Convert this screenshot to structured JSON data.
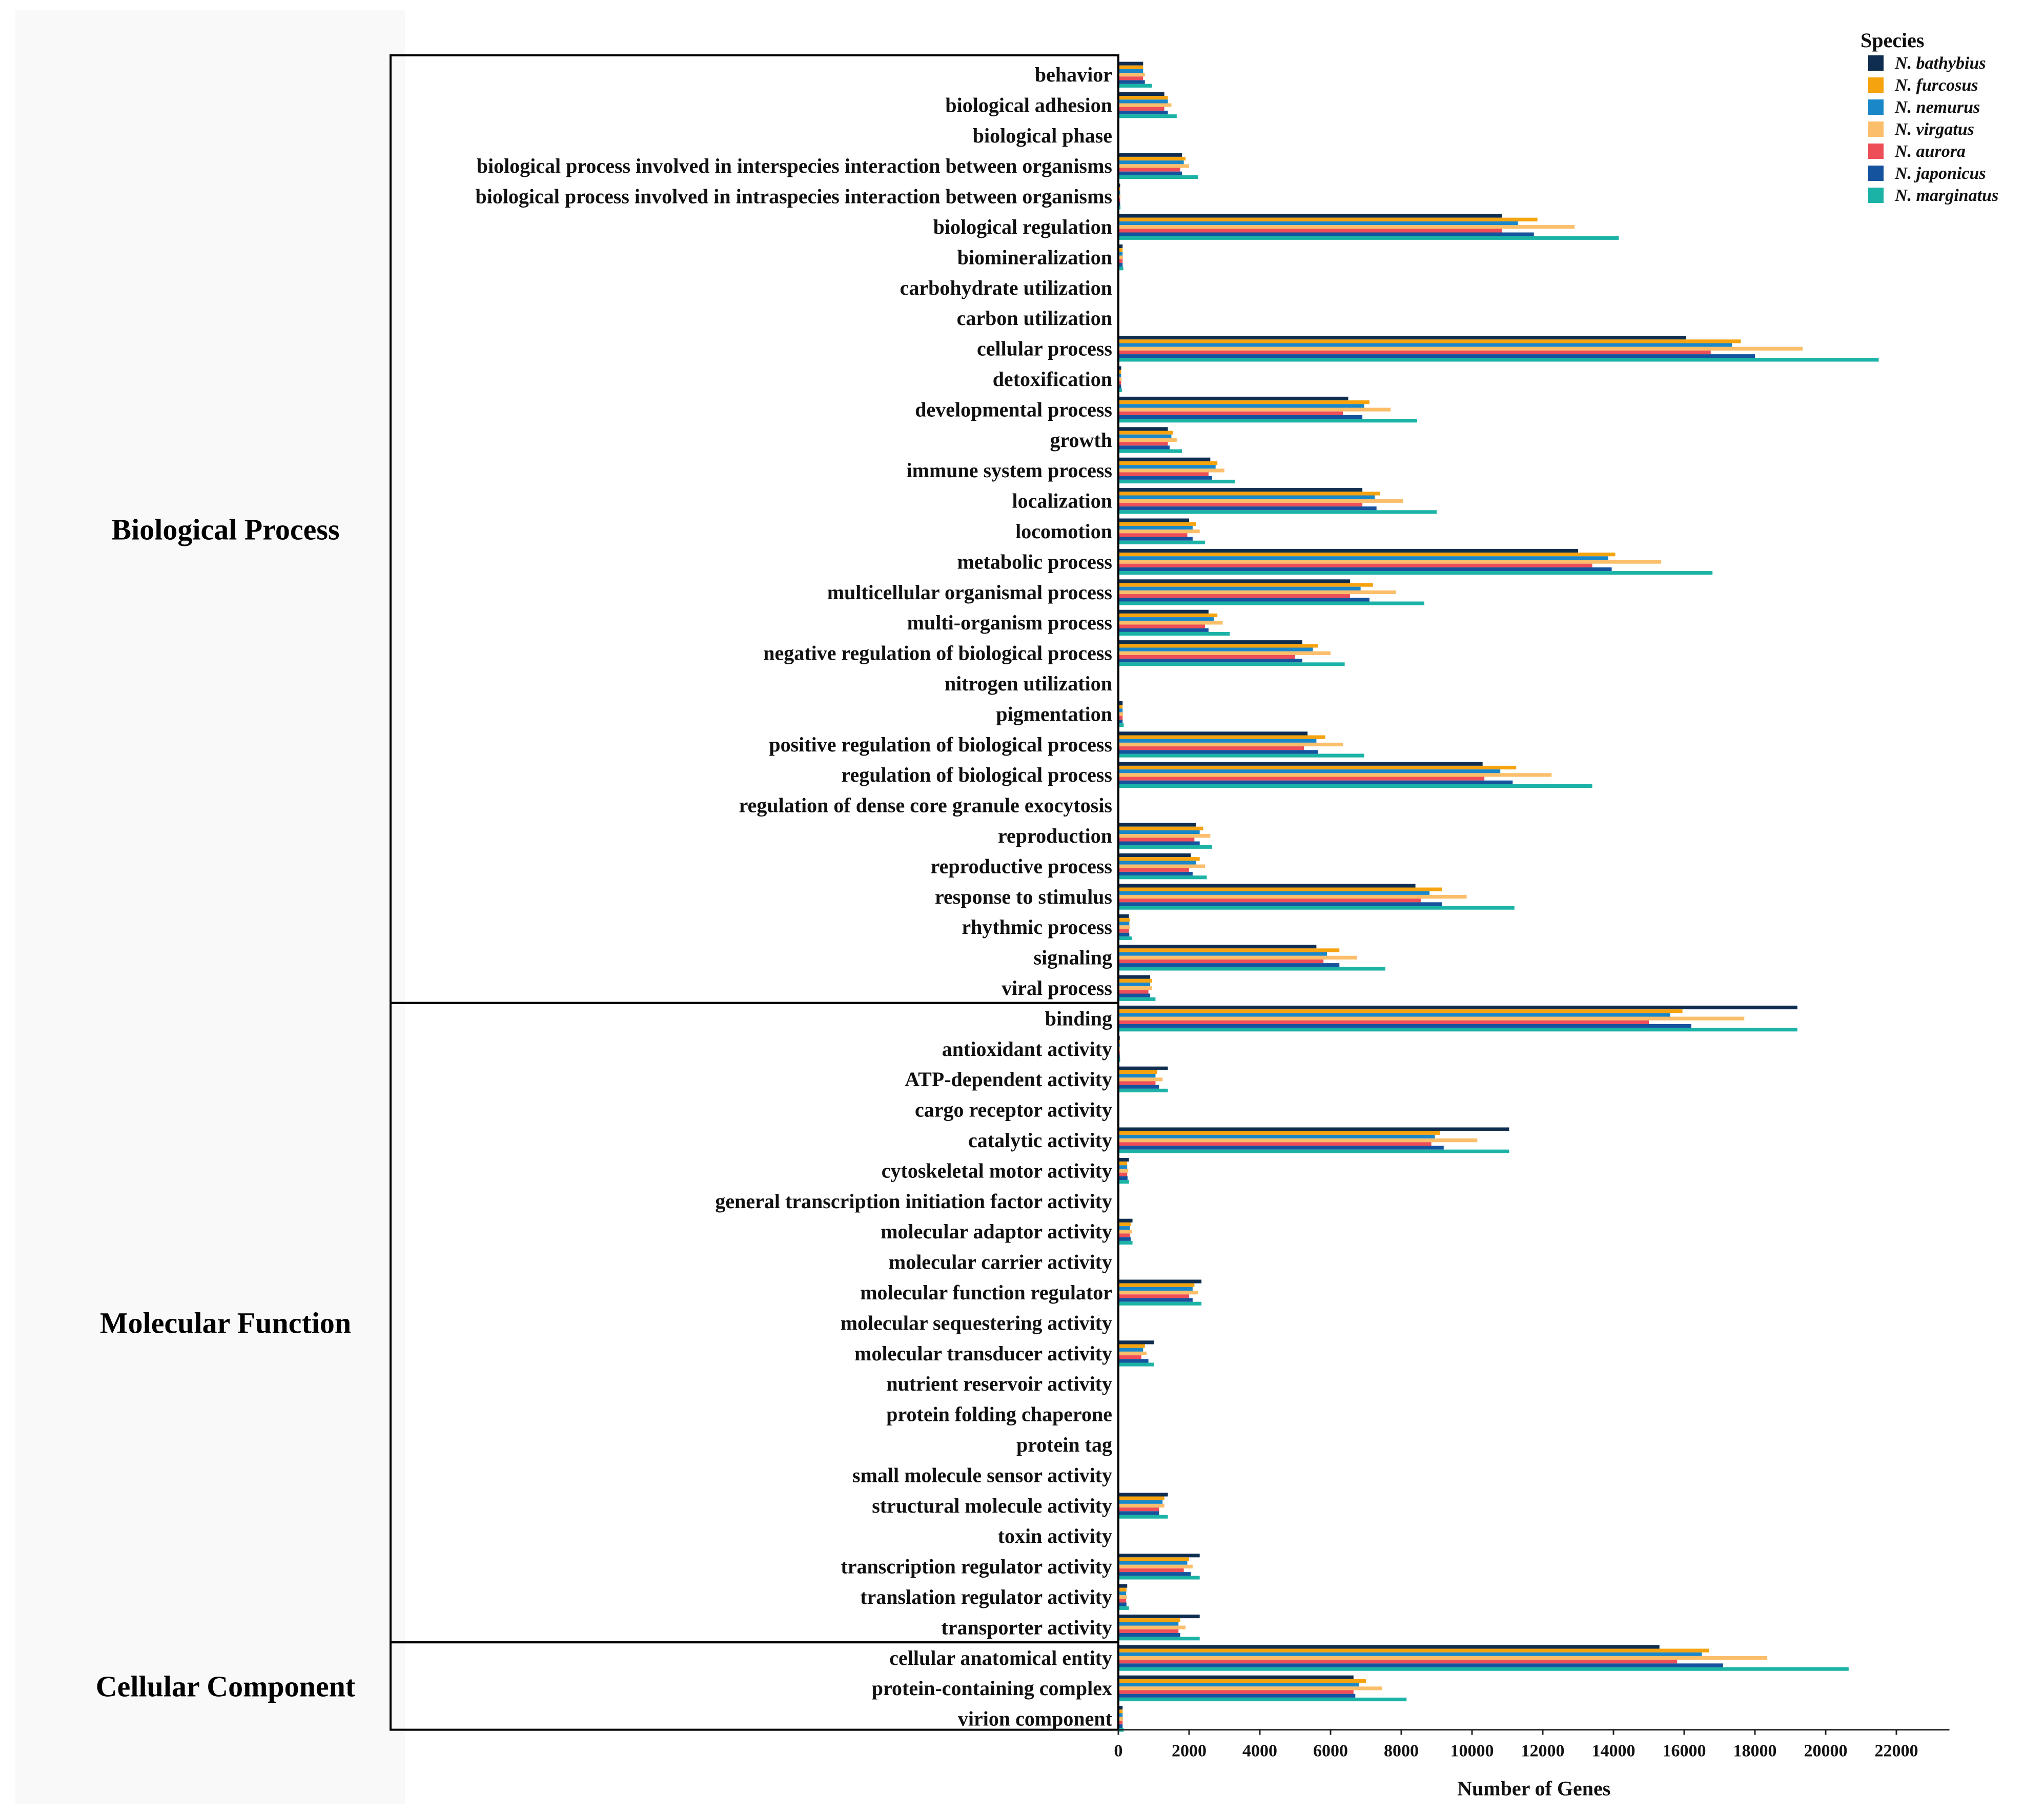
{
  "chart_data": {
    "type": "bar",
    "orientation": "horizontal",
    "xlabel": "Number of Genes",
    "xlim": [
      0,
      23500
    ],
    "xticks": [
      0,
      2000,
      4000,
      6000,
      8000,
      10000,
      12000,
      14000,
      16000,
      18000,
      20000,
      22000
    ],
    "legend_title": "Species",
    "legend_position": "top-right",
    "series_names": [
      "N. bathybius",
      "N. furcosus",
      "N. nemurus",
      "N. virgatus",
      "N. aurora",
      "N. japonicus",
      "N. marginatus"
    ],
    "series_colors": [
      "#0f2d4f",
      "#f5a30f",
      "#1a87c9",
      "#fbbe6a",
      "#ee4e58",
      "#16539e",
      "#1bb3a6"
    ],
    "groups": [
      {
        "name": "Biological Process",
        "start": 0,
        "end": 30
      },
      {
        "name": "Molecular Function",
        "start": 31,
        "end": 51
      },
      {
        "name": "Cellular Component",
        "start": 52,
        "end": 54
      }
    ],
    "categories": [
      {
        "label": "behavior",
        "values": [
          700,
          700,
          700,
          750,
          700,
          750,
          950
        ]
      },
      {
        "label": "biological adhesion",
        "values": [
          1300,
          1400,
          1400,
          1500,
          1300,
          1400,
          1650
        ]
      },
      {
        "label": "biological phase",
        "values": [
          0,
          0,
          0,
          0,
          0,
          0,
          0
        ]
      },
      {
        "label": "biological process involved in interspecies interaction between organisms",
        "values": [
          1800,
          1900,
          1850,
          2000,
          1750,
          1800,
          2250
        ]
      },
      {
        "label": "biological process involved in intraspecies interaction between organisms",
        "values": [
          50,
          50,
          50,
          60,
          50,
          50,
          60
        ]
      },
      {
        "label": "biological regulation",
        "values": [
          10850,
          11850,
          11300,
          12900,
          10850,
          11750,
          14150
        ]
      },
      {
        "label": "biomineralization",
        "values": [
          120,
          120,
          120,
          130,
          120,
          120,
          140
        ]
      },
      {
        "label": "carbohydrate utilization",
        "values": [
          0,
          0,
          0,
          0,
          0,
          0,
          0
        ]
      },
      {
        "label": "carbon utilization",
        "values": [
          0,
          0,
          0,
          0,
          0,
          0,
          0
        ]
      },
      {
        "label": "cellular process",
        "values": [
          16050,
          17600,
          17350,
          19350,
          16750,
          18000,
          21500
        ]
      },
      {
        "label": "detoxification",
        "values": [
          80,
          80,
          80,
          90,
          80,
          80,
          100
        ]
      },
      {
        "label": "developmental process",
        "values": [
          6500,
          7100,
          6950,
          7700,
          6350,
          6900,
          8450
        ]
      },
      {
        "label": "growth",
        "values": [
          1400,
          1550,
          1500,
          1650,
          1400,
          1450,
          1800
        ]
      },
      {
        "label": "immune system process",
        "values": [
          2600,
          2800,
          2750,
          3000,
          2550,
          2650,
          3300
        ]
      },
      {
        "label": "localization",
        "values": [
          6900,
          7400,
          7250,
          8050,
          6900,
          7300,
          9000
        ]
      },
      {
        "label": "locomotion",
        "values": [
          2000,
          2200,
          2100,
          2300,
          1950,
          2100,
          2450
        ]
      },
      {
        "label": "metabolic process",
        "values": [
          13000,
          14050,
          13850,
          15350,
          13400,
          13950,
          16800
        ]
      },
      {
        "label": "multicellular organismal process",
        "values": [
          6550,
          7200,
          6850,
          7850,
          6550,
          7100,
          8650
        ]
      },
      {
        "label": "multi-organism process",
        "values": [
          2550,
          2800,
          2700,
          2950,
          2450,
          2550,
          3150
        ]
      },
      {
        "label": "negative regulation of biological process",
        "values": [
          5200,
          5650,
          5500,
          6000,
          5000,
          5200,
          6400
        ]
      },
      {
        "label": "nitrogen utilization",
        "values": [
          0,
          0,
          0,
          0,
          0,
          0,
          0
        ]
      },
      {
        "label": "pigmentation",
        "values": [
          120,
          120,
          120,
          130,
          120,
          120,
          150
        ]
      },
      {
        "label": "positive regulation of biological process",
        "values": [
          5350,
          5850,
          5600,
          6350,
          5250,
          5650,
          6950
        ]
      },
      {
        "label": "regulation of biological process",
        "values": [
          10300,
          11250,
          10800,
          12250,
          10350,
          11150,
          13400
        ]
      },
      {
        "label": "regulation of dense core granule exocytosis",
        "values": [
          0,
          0,
          0,
          0,
          0,
          0,
          0
        ]
      },
      {
        "label": "reproduction",
        "values": [
          2200,
          2400,
          2300,
          2600,
          2150,
          2300,
          2650
        ]
      },
      {
        "label": "reproductive process",
        "values": [
          2050,
          2300,
          2200,
          2450,
          2000,
          2100,
          2500
        ]
      },
      {
        "label": "response to stimulus",
        "values": [
          8400,
          9150,
          8800,
          9850,
          8550,
          9150,
          11200
        ]
      },
      {
        "label": "rhythmic process",
        "values": [
          300,
          320,
          310,
          330,
          300,
          310,
          380
        ]
      },
      {
        "label": "signaling",
        "values": [
          5600,
          6250,
          5900,
          6750,
          5800,
          6250,
          7550
        ]
      },
      {
        "label": "viral process",
        "values": [
          900,
          950,
          900,
          950,
          850,
          900,
          1050
        ]
      },
      {
        "label": "binding",
        "values": [
          19200,
          15950,
          15600,
          17700,
          15000,
          16200,
          19200
        ]
      },
      {
        "label": "antioxidant activity",
        "values": [
          40,
          40,
          40,
          40,
          40,
          40,
          50
        ]
      },
      {
        "label": "ATP-dependent activity",
        "values": [
          1400,
          1100,
          1050,
          1250,
          1050,
          1150,
          1400
        ]
      },
      {
        "label": "cargo receptor activity",
        "values": [
          20,
          20,
          20,
          20,
          20,
          20,
          20
        ]
      },
      {
        "label": "catalytic activity",
        "values": [
          11050,
          9100,
          8950,
          10150,
          8850,
          9200,
          11050
        ]
      },
      {
        "label": "cytoskeletal motor activity",
        "values": [
          300,
          250,
          250,
          280,
          250,
          260,
          300
        ]
      },
      {
        "label": "general transcription initiation factor activity",
        "values": [
          30,
          30,
          30,
          30,
          30,
          30,
          30
        ]
      },
      {
        "label": "molecular adaptor activity",
        "values": [
          400,
          350,
          330,
          380,
          330,
          350,
          400
        ]
      },
      {
        "label": "molecular carrier activity",
        "values": [
          20,
          20,
          20,
          20,
          20,
          20,
          20
        ]
      },
      {
        "label": "molecular function regulator",
        "values": [
          2350,
          2150,
          2100,
          2250,
          2000,
          2100,
          2350
        ]
      },
      {
        "label": "molecular sequestering activity",
        "values": [
          10,
          10,
          10,
          10,
          10,
          10,
          10
        ]
      },
      {
        "label": "molecular transducer activity",
        "values": [
          1000,
          750,
          700,
          800,
          650,
          850,
          1000
        ]
      },
      {
        "label": "nutrient reservoir activity",
        "values": [
          10,
          10,
          10,
          10,
          10,
          10,
          10
        ]
      },
      {
        "label": "protein folding chaperone",
        "values": [
          10,
          10,
          10,
          10,
          10,
          10,
          10
        ]
      },
      {
        "label": "protein tag",
        "values": [
          10,
          10,
          10,
          10,
          10,
          10,
          10
        ]
      },
      {
        "label": "small molecule sensor activity",
        "values": [
          10,
          10,
          10,
          10,
          10,
          10,
          10
        ]
      },
      {
        "label": "structural molecule activity",
        "values": [
          1400,
          1300,
          1250,
          1300,
          1150,
          1150,
          1400
        ]
      },
      {
        "label": "toxin activity",
        "values": [
          10,
          10,
          10,
          10,
          10,
          10,
          10
        ]
      },
      {
        "label": "transcription regulator activity",
        "values": [
          2300,
          2000,
          1950,
          2100,
          1850,
          2050,
          2300
        ]
      },
      {
        "label": "translation regulator activity",
        "values": [
          250,
          230,
          220,
          240,
          220,
          230,
          300
        ]
      },
      {
        "label": "transporter activity",
        "values": [
          2300,
          1750,
          1700,
          1900,
          1700,
          1750,
          2300
        ]
      },
      {
        "label": "cellular anatomical entity",
        "values": [
          15300,
          16700,
          16500,
          18350,
          15800,
          17100,
          20650
        ]
      },
      {
        "label": "protein-containing complex",
        "values": [
          6650,
          7000,
          6800,
          7450,
          6650,
          6700,
          8150
        ]
      },
      {
        "label": "virion component",
        "values": [
          120,
          120,
          120,
          130,
          120,
          120,
          150
        ]
      }
    ]
  }
}
